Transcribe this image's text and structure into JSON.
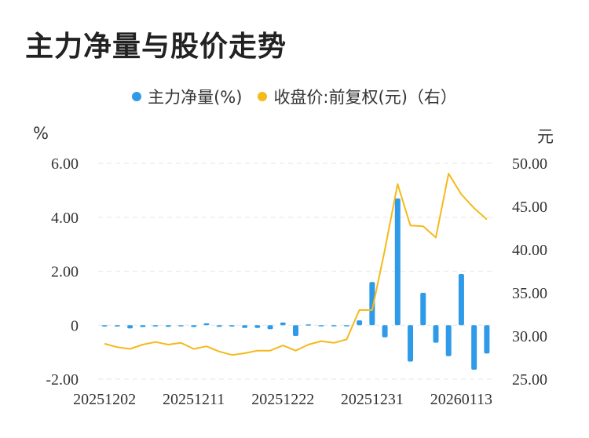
{
  "title": "主力净量与股价走势",
  "colors": {
    "bar": "#2f9be8",
    "line": "#f5b91a",
    "grid": "#e6e6e6",
    "text": "#333333"
  },
  "legend": {
    "net": "主力净量(%)",
    "price": "收盘价:前复权(元)（右）"
  },
  "units": {
    "left": "%",
    "right": "元"
  },
  "chart_data": {
    "type": "bar",
    "title": "主力净量与股价走势",
    "x_tick_labels": [
      "20251202",
      "20251211",
      "20251222",
      "20251231",
      "20260113"
    ],
    "x_tick_indices": [
      0,
      7,
      14,
      21,
      28
    ],
    "left_axis": {
      "unit": "%",
      "ylim": [
        -2,
        6
      ],
      "ticks": [
        6,
        4,
        2,
        0,
        -2
      ],
      "tick_labels": [
        "6.00",
        "4.00",
        "2.00",
        "0",
        "-2.00"
      ]
    },
    "right_axis": {
      "unit": "元",
      "ylim": [
        25,
        50
      ],
      "ticks": [
        50,
        45,
        40,
        35,
        30,
        25
      ],
      "tick_labels": [
        "50.00",
        "45.00",
        "40.00",
        "35.00",
        "30.00",
        "25.00"
      ]
    },
    "grid": true,
    "legend_position": "top-center",
    "series": [
      {
        "name": "主力净量(%)",
        "type": "bar",
        "axis": "left",
        "values": [
          -0.05,
          -0.05,
          -0.12,
          -0.07,
          -0.05,
          -0.06,
          -0.02,
          -0.07,
          0.07,
          -0.06,
          -0.05,
          -0.1,
          -0.1,
          -0.15,
          0.1,
          -0.4,
          0.03,
          -0.03,
          -0.03,
          -0.03,
          0.18,
          1.6,
          -0.45,
          4.7,
          -1.35,
          1.2,
          -0.65,
          -1.15,
          1.9,
          -1.65,
          -1.05
        ]
      },
      {
        "name": "收盘价:前复权(元)（右）",
        "type": "line",
        "axis": "right",
        "values": [
          29.1,
          28.7,
          28.5,
          29.0,
          29.3,
          29.0,
          29.2,
          28.5,
          28.8,
          28.2,
          27.8,
          28.0,
          28.3,
          28.3,
          28.9,
          28.3,
          29.0,
          29.4,
          29.2,
          29.6,
          33.0,
          33.0,
          40.0,
          47.6,
          42.8,
          42.7,
          41.4,
          48.8,
          46.4,
          44.8,
          43.5
        ]
      }
    ]
  }
}
